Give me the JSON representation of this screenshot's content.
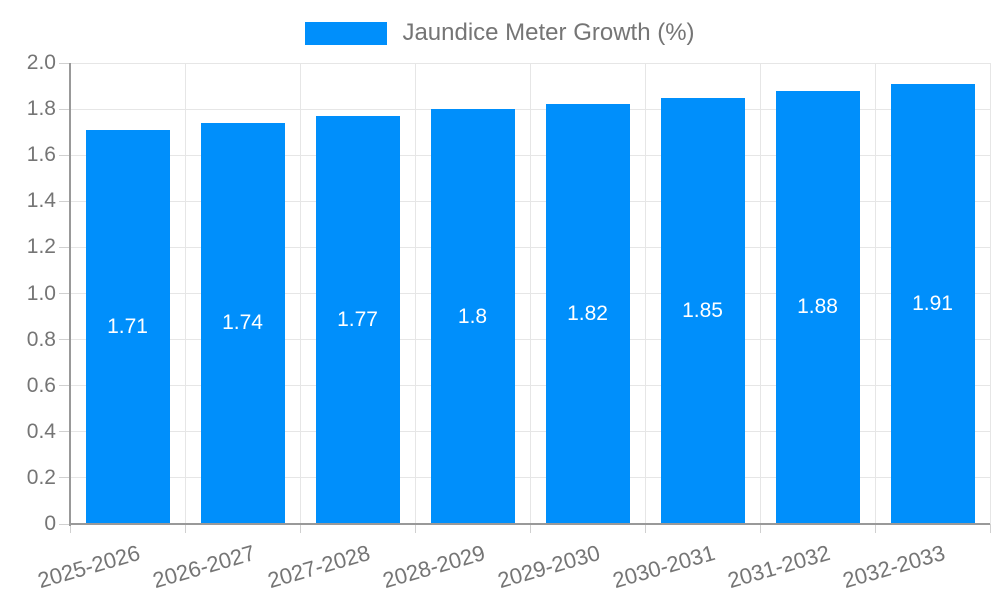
{
  "chart_data": {
    "type": "bar",
    "title": "Jaundice Meter Growth (%)",
    "categories": [
      "2025-2026",
      "2026-2027",
      "2027-2028",
      "2028-2029",
      "2029-2030",
      "2030-2031",
      "2031-2032",
      "2032-2033"
    ],
    "values": [
      1.71,
      1.74,
      1.77,
      1.8,
      1.82,
      1.85,
      1.88,
      1.91
    ],
    "bar_labels": [
      "1.71",
      "1.74",
      "1.77",
      "1.8",
      "1.82",
      "1.85",
      "1.88",
      "1.91"
    ],
    "xlabel": "",
    "ylabel": "",
    "ylim": [
      0,
      2.0
    ],
    "yticks": [
      0,
      0.2,
      0.4,
      0.6,
      0.8,
      1.0,
      1.2,
      1.4,
      1.6,
      1.8,
      2.0
    ],
    "ytick_labels": [
      "0",
      "0.2",
      "0.4",
      "0.6",
      "0.8",
      "1.0",
      "1.2",
      "1.4",
      "1.6",
      "1.8",
      "2.0"
    ],
    "grid": true,
    "legend_position": "top",
    "colors": {
      "bar": "#008FFB",
      "bar_label_text": "#FFFFFF",
      "axis_text": "#757575",
      "legend_text": "#757575",
      "gridline": "#E6E6E6",
      "tick": "#D0D0D0",
      "axis_line": "#999999",
      "background": "#FFFFFF"
    }
  }
}
